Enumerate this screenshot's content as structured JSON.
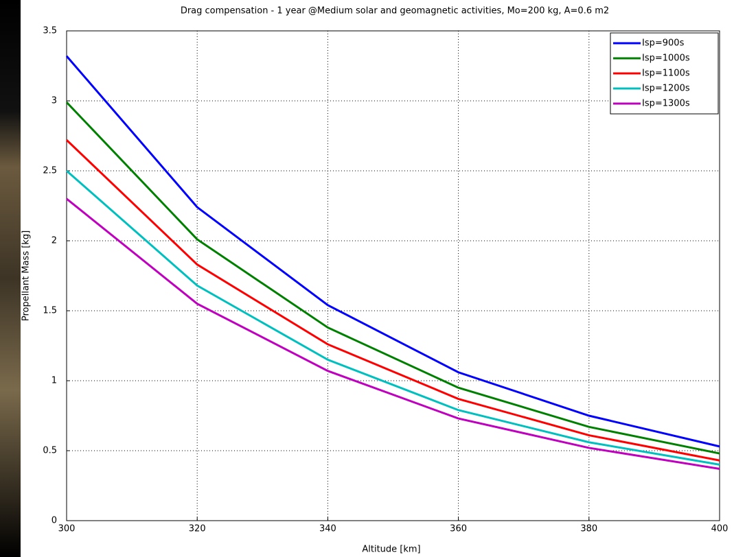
{
  "chart_data": {
    "type": "line",
    "title": "Drag compensation - 1 year @Medium solar and geomagnetic activities, Mo=200 kg, A=0.6 m2",
    "x_label": "Altitude [km]",
    "y_label": "Propellant Mass [kg]",
    "x": [
      300,
      320,
      340,
      360,
      380,
      400
    ],
    "series": [
      {
        "name": "Isp=900s",
        "color": "#0000ff",
        "values": [
          3.32,
          2.24,
          1.54,
          1.06,
          0.75,
          0.53
        ]
      },
      {
        "name": "Isp=1000s",
        "color": "#008000",
        "values": [
          2.99,
          2.01,
          1.38,
          0.95,
          0.67,
          0.48
        ]
      },
      {
        "name": "Isp=1100s",
        "color": "#ff0000",
        "values": [
          2.72,
          1.83,
          1.26,
          0.87,
          0.61,
          0.43
        ]
      },
      {
        "name": "Isp=1200s",
        "color": "#00bfbf",
        "values": [
          2.5,
          1.68,
          1.15,
          0.79,
          0.56,
          0.4
        ]
      },
      {
        "name": "Isp=1300s",
        "color": "#bf00bf",
        "values": [
          2.3,
          1.55,
          1.07,
          0.73,
          0.52,
          0.37
        ]
      }
    ],
    "xlim": [
      300,
      400
    ],
    "xticks": [
      300,
      320,
      340,
      360,
      380,
      400
    ],
    "ylim": [
      0,
      3.5
    ],
    "yticks": [
      0,
      0.5,
      1,
      1.5,
      2,
      2.5,
      3,
      3.5
    ],
    "grid": true,
    "legend": "upper right"
  }
}
